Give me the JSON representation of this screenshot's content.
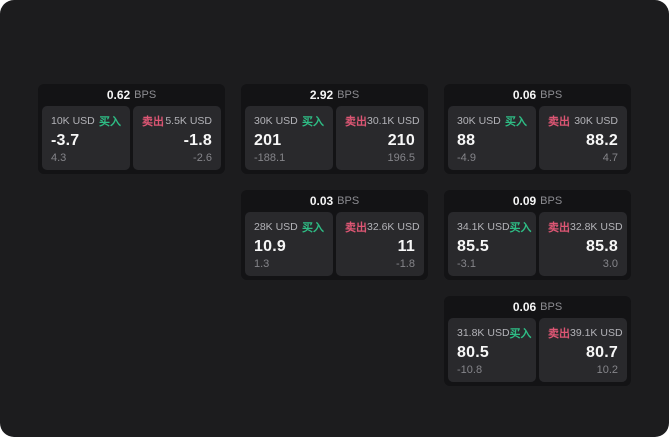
{
  "labels": {
    "bps": "BPS",
    "buy": "买入",
    "sell": "卖出"
  },
  "colors": {
    "buy": "#2ebd85",
    "sell": "#dd5674",
    "surface": "#1c1c1e",
    "card": "#131315",
    "panel": "#29292c"
  },
  "cards": [
    {
      "bps": "0.62",
      "buy": {
        "amount": "10K USD",
        "value": "-3.7",
        "sub": "4.3"
      },
      "sell": {
        "amount": "5.5K USD",
        "value": "-1.8",
        "sub": "-2.6"
      }
    },
    {
      "bps": "2.92",
      "buy": {
        "amount": "30K USD",
        "value": "201",
        "sub": "-188.1"
      },
      "sell": {
        "amount": "30.1K USD",
        "value": "210",
        "sub": "196.5"
      }
    },
    {
      "bps": "0.06",
      "buy": {
        "amount": "30K USD",
        "value": "88",
        "sub": "-4.9"
      },
      "sell": {
        "amount": "30K USD",
        "value": "88.2",
        "sub": "4.7"
      }
    },
    {
      "bps": "0.03",
      "buy": {
        "amount": "28K USD",
        "value": "10.9",
        "sub": "1.3"
      },
      "sell": {
        "amount": "32.6K USD",
        "value": "11",
        "sub": "-1.8"
      }
    },
    {
      "bps": "0.09",
      "buy": {
        "amount": "34.1K USD",
        "value": "85.5",
        "sub": "-3.1"
      },
      "sell": {
        "amount": "32.8K USD",
        "value": "85.8",
        "sub": "3.0"
      }
    },
    {
      "bps": "0.06",
      "buy": {
        "amount": "31.8K USD",
        "value": "80.5",
        "sub": "-10.8"
      },
      "sell": {
        "amount": "39.1K USD",
        "value": "80.7",
        "sub": "10.2"
      }
    }
  ]
}
